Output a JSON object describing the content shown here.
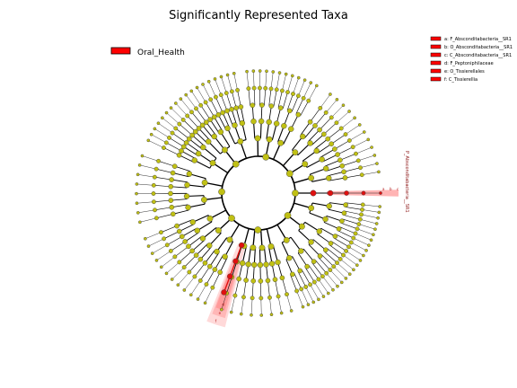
{
  "title": "Significantly Represented Taxa",
  "legend": {
    "label": "Oral_Health",
    "color": "#ff0000"
  },
  "colors": {
    "node_default": "#c0c014",
    "node_highlight": "#e01010",
    "shade": "#ff7777",
    "branch": "#000000"
  },
  "clade_key": [
    {
      "letter": "a",
      "text": "a: F_Absconditabacteria__SR1"
    },
    {
      "letter": "b",
      "text": "b: O_Absconditabacteria__SR1"
    },
    {
      "letter": "c",
      "text": "c: C_Absconditabacteria__SR1"
    },
    {
      "letter": "d",
      "text": "d: F_Peptoniphilaceae"
    },
    {
      "letter": "e",
      "text": "e: O_Tissierellales"
    },
    {
      "letter": "f",
      "text": "f: C_Tissierellia"
    }
  ],
  "branch_label": "P_Absconditabacteria__SR1",
  "highlight_letters_right": [
    "a",
    "b",
    "c"
  ],
  "highlight_letters_lower": [
    "f",
    "e",
    "d"
  ]
}
